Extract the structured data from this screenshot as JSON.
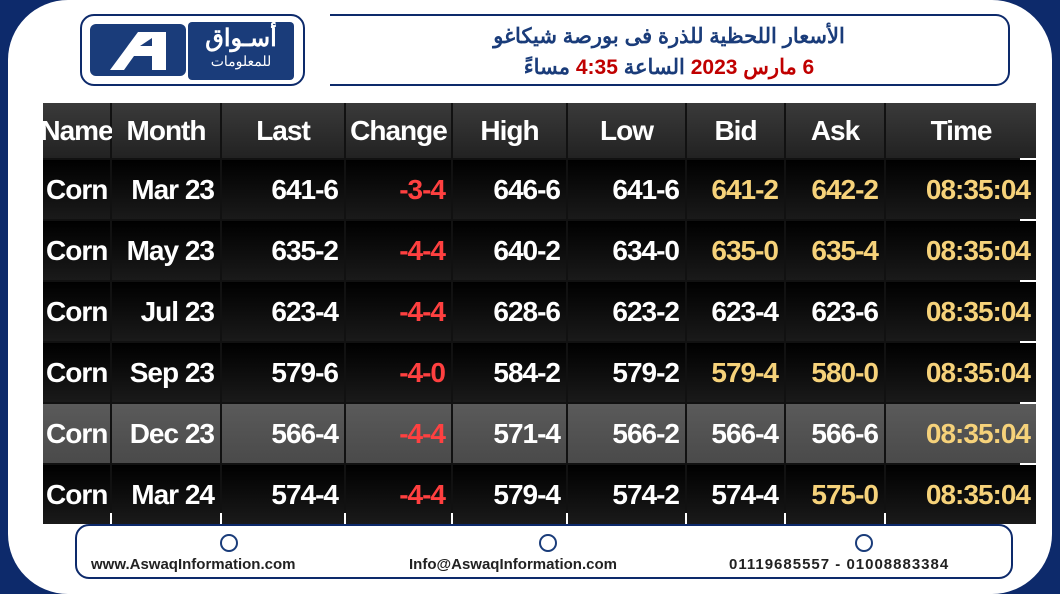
{
  "header": {
    "logo": {
      "name": "أسـواق",
      "tagline": "للمعلومات"
    },
    "title": "الأسعار اللحظية للذرة فى بورصة شيكاغو",
    "subtitle": {
      "date": "6 مارس 2023",
      "word_time": "الساعة",
      "time": "4:35",
      "period": "مساءً"
    }
  },
  "table": {
    "columns": [
      "Name",
      "Month",
      "Last",
      "Change",
      "High",
      "Low",
      "Bid",
      "Ask",
      "Time"
    ],
    "rows": [
      [
        "Corn",
        "Mar 23",
        "641-6",
        "-3-4",
        "646-6",
        "641-6",
        "641-2",
        "642-2",
        "08:35:04"
      ],
      [
        "Corn",
        "May 23",
        "635-2",
        "-4-4",
        "640-2",
        "634-0",
        "635-0",
        "635-4",
        "08:35:04"
      ],
      [
        "Corn",
        "Jul 23",
        "623-4",
        "-4-4",
        "628-6",
        "623-2",
        "623-4",
        "623-6",
        "08:35:04"
      ],
      [
        "Corn",
        "Sep 23",
        "579-6",
        "-4-0",
        "584-2",
        "579-2",
        "579-4",
        "580-0",
        "08:35:04"
      ],
      [
        "Corn",
        "Dec 23",
        "566-4",
        "-4-4",
        "571-4",
        "566-2",
        "566-4",
        "566-6",
        "08:35:04"
      ],
      [
        "Corn",
        "Mar 24",
        "574-4",
        "-4-4",
        "579-4",
        "574-2",
        "574-4",
        "575-0",
        "08:35:04"
      ]
    ]
  },
  "footer": {
    "website": "www.AswaqInformation.com",
    "email": "Info@AswaqInformation.com",
    "phone": "01119685557 - 01008883384"
  }
}
